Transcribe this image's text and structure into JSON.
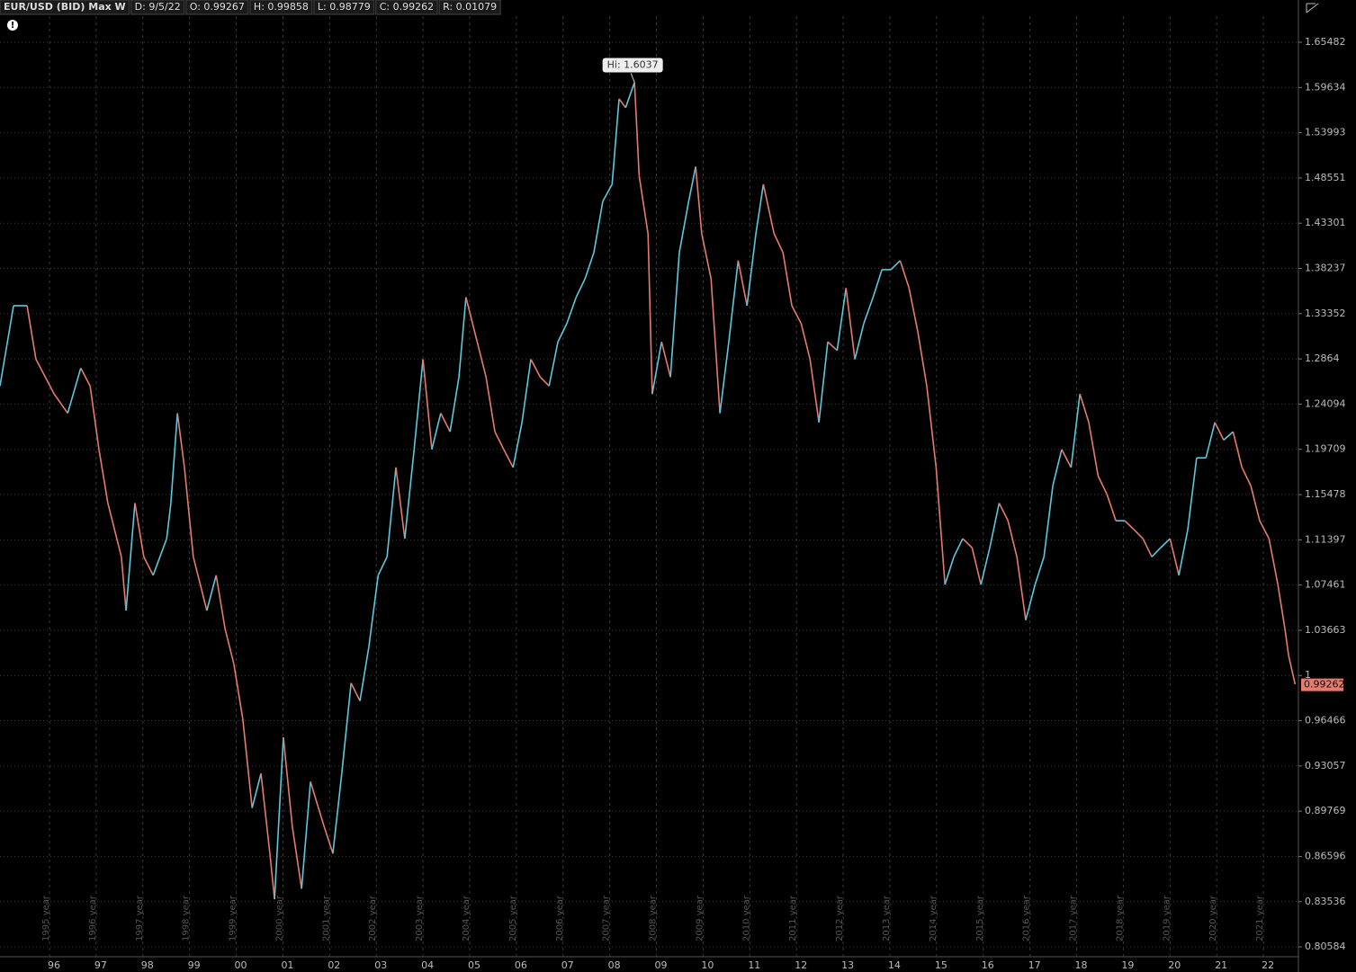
{
  "chart_data": {
    "type": "line",
    "title": "EUR/USD (BID) Max W",
    "header_fields": [
      "D: 9/5/22",
      "O: 0.99267",
      "H: 0.99858",
      "L: 0.98779",
      "C: 0.99262",
      "R: 0.01079"
    ],
    "annotation": "Hi: 1.6037",
    "last_price": 0.99262,
    "log_scale": true,
    "grid": true,
    "up_color": "#5cc8dc",
    "down_color": "#e57a6e",
    "xlim": [
      1994.94,
      2022.75
    ],
    "ylim": [
      0.7899,
      1.7114
    ],
    "yticks": [
      1.65482,
      1.59634,
      1.53993,
      1.48551,
      1.43301,
      1.38237,
      1.33352,
      1.2864,
      1.24094,
      1.19709,
      1.15478,
      1.11397,
      1.07461,
      1.03663,
      1,
      0.96466,
      0.93057,
      0.89769,
      0.86596,
      0.83536,
      0.80584
    ],
    "xticks": [
      {
        "value": 1996,
        "label": "96"
      },
      {
        "value": 1997,
        "label": "97"
      },
      {
        "value": 1998,
        "label": "98"
      },
      {
        "value": 1999,
        "label": "99"
      },
      {
        "value": 2000,
        "label": "00"
      },
      {
        "value": 2001,
        "label": "01"
      },
      {
        "value": 2002,
        "label": "02"
      },
      {
        "value": 2003,
        "label": "03"
      },
      {
        "value": 2004,
        "label": "04"
      },
      {
        "value": 2005,
        "label": "05"
      },
      {
        "value": 2006,
        "label": "06"
      },
      {
        "value": 2007,
        "label": "07"
      },
      {
        "value": 2008,
        "label": "08"
      },
      {
        "value": 2009,
        "label": "09"
      },
      {
        "value": 2010,
        "label": "10"
      },
      {
        "value": 2011,
        "label": "11"
      },
      {
        "value": 2012,
        "label": "12"
      },
      {
        "value": 2013,
        "label": "13"
      },
      {
        "value": 2014,
        "label": "14"
      },
      {
        "value": 2015,
        "label": "15"
      },
      {
        "value": 2016,
        "label": "16"
      },
      {
        "value": 2017,
        "label": "17"
      },
      {
        "value": 2018,
        "label": "18"
      },
      {
        "value": 2019,
        "label": "19"
      },
      {
        "value": 2020,
        "label": "20"
      },
      {
        "value": 2021,
        "label": "21"
      },
      {
        "value": 2022,
        "label": "22"
      }
    ],
    "year_labels": [
      "1995 year",
      "1996 year",
      "1997 year",
      "1998 year",
      "1999 year",
      "2000 year",
      "2001 year",
      "2002 year",
      "2003 year",
      "2004 year",
      "2005 year",
      "2006 year",
      "2007 year",
      "2008 year",
      "2009 year",
      "2010 year",
      "2011 year",
      "2012 year",
      "2013 year",
      "2014 year",
      "2015 year",
      "2016 year",
      "2017 year",
      "2018 year",
      "2019 year",
      "2020 year",
      "2021 year"
    ],
    "x": [
      1994.94,
      1995.23,
      1995.52,
      1995.71,
      1996.1,
      1996.39,
      1996.67,
      1996.87,
      1997.06,
      1997.25,
      1997.54,
      1997.64,
      1997.83,
      1998.02,
      1998.22,
      1998.51,
      1998.6,
      1998.74,
      1998.89,
      1999.08,
      1999.37,
      1999.57,
      1999.76,
      1999.95,
      2000.14,
      2000.34,
      2000.53,
      2000.72,
      2000.82,
      2001.01,
      2001.2,
      2001.4,
      2001.59,
      2001.88,
      2002.07,
      2002.26,
      2002.46,
      2002.65,
      2002.84,
      2003.04,
      2003.23,
      2003.42,
      2003.61,
      2003.81,
      2004.0,
      2004.19,
      2004.38,
      2004.58,
      2004.77,
      2004.92,
      2005.16,
      2005.35,
      2005.54,
      2005.73,
      2005.93,
      2006.12,
      2006.31,
      2006.51,
      2006.7,
      2006.89,
      2007.08,
      2007.28,
      2007.47,
      2007.66,
      2007.85,
      2008.05,
      2008.2,
      2008.34,
      2008.53,
      2008.63,
      2008.82,
      2008.91,
      2009.11,
      2009.3,
      2009.49,
      2009.69,
      2009.84,
      2009.97,
      2010.17,
      2010.36,
      2010.55,
      2010.75,
      2010.94,
      2011.13,
      2011.29,
      2011.52,
      2011.71,
      2011.9,
      2012.1,
      2012.29,
      2012.48,
      2012.67,
      2012.87,
      2013.06,
      2013.25,
      2013.44,
      2013.64,
      2013.83,
      2014.02,
      2014.22,
      2014.41,
      2014.6,
      2014.79,
      2014.99,
      2015.18,
      2015.37,
      2015.56,
      2015.76,
      2015.95,
      2016.14,
      2016.34,
      2016.53,
      2016.72,
      2016.91,
      2017.11,
      2017.3,
      2017.49,
      2017.68,
      2017.88,
      2018.07,
      2018.26,
      2018.46,
      2018.65,
      2018.84,
      2019.03,
      2019.23,
      2019.42,
      2019.61,
      2019.8,
      2020.0,
      2020.19,
      2020.38,
      2020.57,
      2020.77,
      2020.96,
      2021.15,
      2021.35,
      2021.54,
      2021.73,
      2021.92,
      2022.12,
      2022.31,
      2022.46,
      2022.54,
      2022.68
    ],
    "values": [
      1.259,
      1.342,
      1.342,
      1.286,
      1.251,
      1.232,
      1.277,
      1.259,
      1.197,
      1.147,
      1.099,
      1.053,
      1.147,
      1.099,
      1.083,
      1.115,
      1.147,
      1.232,
      1.18,
      1.099,
      1.053,
      1.083,
      1.038,
      1.009,
      0.966,
      0.9,
      0.925,
      0.868,
      0.837,
      0.952,
      0.887,
      0.844,
      0.919,
      0.887,
      0.868,
      0.925,
      0.994,
      0.98,
      1.023,
      1.083,
      1.099,
      1.18,
      1.115,
      1.197,
      1.286,
      1.197,
      1.232,
      1.214,
      1.268,
      1.351,
      1.304,
      1.268,
      1.214,
      1.197,
      1.18,
      1.223,
      1.286,
      1.268,
      1.259,
      1.304,
      1.323,
      1.351,
      1.371,
      1.4,
      1.458,
      1.478,
      1.582,
      1.571,
      1.603,
      1.488,
      1.421,
      1.251,
      1.304,
      1.268,
      1.4,
      1.458,
      1.499,
      1.421,
      1.371,
      1.232,
      1.304,
      1.391,
      1.342,
      1.421,
      1.478,
      1.421,
      1.4,
      1.342,
      1.323,
      1.286,
      1.223,
      1.304,
      1.295,
      1.361,
      1.286,
      1.323,
      1.351,
      1.381,
      1.381,
      1.391,
      1.361,
      1.314,
      1.259,
      1.18,
      1.075,
      1.099,
      1.115,
      1.107,
      1.075,
      1.107,
      1.147,
      1.131,
      1.099,
      1.045,
      1.075,
      1.099,
      1.163,
      1.197,
      1.18,
      1.251,
      1.223,
      1.172,
      1.155,
      1.131,
      1.131,
      1.123,
      1.115,
      1.099,
      1.107,
      1.115,
      1.083,
      1.123,
      1.189,
      1.189,
      1.223,
      1.206,
      1.214,
      1.18,
      1.163,
      1.131,
      1.115,
      1.075,
      1.038,
      1.016,
      0.993
    ]
  }
}
